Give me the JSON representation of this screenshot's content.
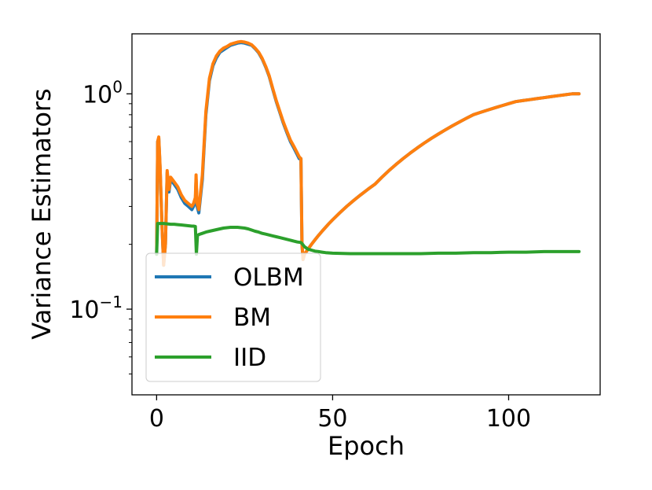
{
  "chart_data": {
    "type": "line",
    "title": "",
    "xlabel": "Epoch",
    "ylabel": "Variance Estimators",
    "xlim": [
      -7,
      126
    ],
    "ylim": [
      0.04,
      1.9
    ],
    "yscale": "log",
    "xticks": [
      0,
      50,
      100
    ],
    "yticks": [
      {
        "value": 1.0,
        "base": "10",
        "exp": "0"
      },
      {
        "value": 0.1,
        "base": "10",
        "exp": "−1"
      }
    ],
    "grid": false,
    "legend": {
      "placement": "lower-left",
      "entries": [
        {
          "label": "OLBM",
          "color": "#1f77b4"
        },
        {
          "label": "BM",
          "color": "#ff7f0e"
        },
        {
          "label": "IID",
          "color": "#2ca02c"
        }
      ]
    },
    "series": [
      {
        "name": "OLBM",
        "color": "#1f77b4",
        "x": [
          0,
          0.3,
          0.6,
          1,
          1.5,
          2,
          2.5,
          3,
          3.5,
          4,
          5,
          6,
          7,
          8,
          9,
          10,
          10.5,
          11,
          11.2,
          11.5,
          12,
          13,
          14,
          15,
          16,
          17,
          18,
          19,
          20,
          21,
          22,
          23,
          24,
          25,
          26,
          27,
          28,
          29,
          30,
          31,
          32,
          33,
          34,
          35,
          36,
          37,
          38,
          39,
          40,
          40.5,
          41,
          41.3,
          41.6,
          42,
          43,
          44,
          45,
          46,
          47,
          48,
          49,
          50,
          52,
          54,
          56,
          58,
          60,
          62,
          64,
          66,
          68,
          70,
          72,
          74,
          76,
          78,
          80,
          82,
          84,
          86,
          88,
          90,
          92,
          94,
          96,
          98,
          100,
          102,
          104,
          106,
          108,
          110,
          112,
          114,
          116,
          118,
          120
        ],
        "values": [
          0.18,
          0.6,
          0.62,
          0.45,
          0.25,
          0.16,
          0.2,
          0.43,
          0.35,
          0.4,
          0.38,
          0.36,
          0.33,
          0.31,
          0.3,
          0.29,
          0.3,
          0.32,
          0.4,
          0.3,
          0.28,
          0.4,
          0.8,
          1.15,
          1.35,
          1.47,
          1.56,
          1.6,
          1.64,
          1.68,
          1.7,
          1.72,
          1.73,
          1.72,
          1.7,
          1.68,
          1.62,
          1.55,
          1.45,
          1.33,
          1.2,
          1.05,
          0.92,
          0.82,
          0.73,
          0.66,
          0.6,
          0.56,
          0.52,
          0.5,
          0.5,
          0.2,
          0.17,
          0.18,
          0.19,
          0.2,
          0.21,
          0.22,
          0.23,
          0.24,
          0.25,
          0.26,
          0.28,
          0.3,
          0.32,
          0.34,
          0.36,
          0.38,
          0.41,
          0.44,
          0.47,
          0.5,
          0.53,
          0.56,
          0.59,
          0.62,
          0.65,
          0.68,
          0.71,
          0.74,
          0.77,
          0.8,
          0.82,
          0.84,
          0.86,
          0.88,
          0.9,
          0.92,
          0.93,
          0.94,
          0.95,
          0.96,
          0.97,
          0.98,
          0.99,
          1.0,
          1.0
        ]
      },
      {
        "name": "BM",
        "color": "#ff7f0e",
        "x": [
          0,
          0.3,
          0.6,
          1,
          1.5,
          2,
          2.5,
          3,
          3.5,
          4,
          5,
          6,
          7,
          8,
          9,
          10,
          10.5,
          11,
          11.2,
          11.5,
          12,
          13,
          14,
          15,
          16,
          17,
          18,
          19,
          20,
          21,
          22,
          23,
          24,
          25,
          26,
          27,
          28,
          29,
          30,
          31,
          32,
          33,
          34,
          35,
          36,
          37,
          38,
          39,
          40,
          40.5,
          41,
          41.3,
          41.6,
          42,
          43,
          44,
          45,
          46,
          47,
          48,
          49,
          50,
          52,
          54,
          56,
          58,
          60,
          62,
          64,
          66,
          68,
          70,
          72,
          74,
          76,
          78,
          80,
          82,
          84,
          86,
          88,
          90,
          92,
          94,
          96,
          98,
          100,
          102,
          104,
          106,
          108,
          110,
          112,
          114,
          116,
          118,
          120
        ],
        "values": [
          0.18,
          0.6,
          0.63,
          0.46,
          0.25,
          0.16,
          0.2,
          0.44,
          0.36,
          0.41,
          0.39,
          0.37,
          0.34,
          0.32,
          0.31,
          0.3,
          0.31,
          0.33,
          0.42,
          0.31,
          0.29,
          0.42,
          0.83,
          1.18,
          1.38,
          1.5,
          1.58,
          1.63,
          1.66,
          1.7,
          1.72,
          1.74,
          1.75,
          1.74,
          1.72,
          1.69,
          1.63,
          1.56,
          1.46,
          1.34,
          1.21,
          1.06,
          0.93,
          0.83,
          0.74,
          0.67,
          0.61,
          0.57,
          0.53,
          0.51,
          0.5,
          0.2,
          0.17,
          0.18,
          0.19,
          0.2,
          0.21,
          0.22,
          0.23,
          0.24,
          0.25,
          0.26,
          0.28,
          0.3,
          0.32,
          0.34,
          0.36,
          0.38,
          0.41,
          0.44,
          0.47,
          0.5,
          0.53,
          0.56,
          0.59,
          0.62,
          0.65,
          0.68,
          0.71,
          0.74,
          0.77,
          0.8,
          0.82,
          0.84,
          0.86,
          0.88,
          0.9,
          0.92,
          0.93,
          0.94,
          0.95,
          0.96,
          0.97,
          0.98,
          0.99,
          1.0,
          1.0
        ]
      },
      {
        "name": "IID",
        "color": "#2ca02c",
        "x": [
          0,
          0.3,
          1,
          2,
          3,
          4,
          5,
          6,
          7,
          8,
          9,
          10,
          10.5,
          11,
          11.3,
          11.6,
          12,
          13,
          14,
          15,
          16,
          17,
          18,
          19,
          20,
          21,
          22,
          23,
          24,
          25,
          26,
          27,
          28,
          29,
          30,
          31,
          32,
          33,
          34,
          35,
          36,
          37,
          38,
          39,
          40,
          41,
          41.5,
          42,
          43,
          44,
          45,
          46,
          47,
          48,
          50,
          55,
          60,
          65,
          70,
          75,
          80,
          85,
          90,
          95,
          100,
          105,
          110,
          115,
          120
        ],
        "values": [
          0.18,
          0.25,
          0.25,
          0.25,
          0.249,
          0.248,
          0.248,
          0.247,
          0.246,
          0.245,
          0.244,
          0.243,
          0.243,
          0.242,
          0.18,
          0.22,
          0.222,
          0.225,
          0.228,
          0.23,
          0.232,
          0.234,
          0.236,
          0.238,
          0.239,
          0.24,
          0.24,
          0.24,
          0.239,
          0.238,
          0.236,
          0.233,
          0.23,
          0.228,
          0.225,
          0.223,
          0.221,
          0.219,
          0.217,
          0.215,
          0.213,
          0.211,
          0.209,
          0.207,
          0.205,
          0.204,
          0.2,
          0.195,
          0.19,
          0.188,
          0.186,
          0.185,
          0.184,
          0.183,
          0.182,
          0.181,
          0.181,
          0.181,
          0.181,
          0.181,
          0.182,
          0.182,
          0.183,
          0.183,
          0.184,
          0.184,
          0.185,
          0.185,
          0.185
        ]
      }
    ]
  }
}
